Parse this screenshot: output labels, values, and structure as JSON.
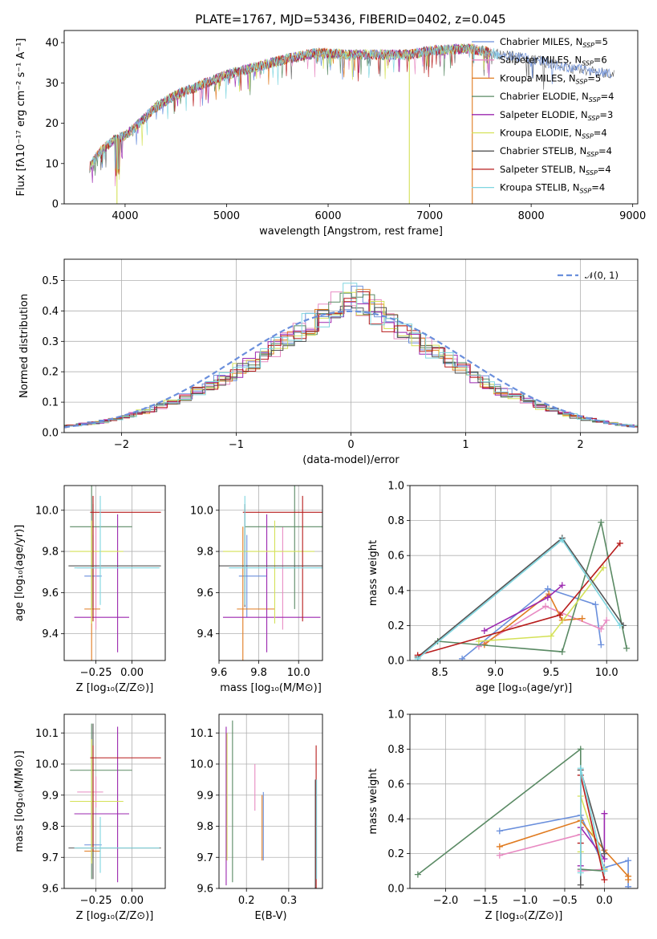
{
  "figure": {
    "title": "PLATE=1767, MJD=53436, FIBERID=0402, z=0.045"
  },
  "colors": [
    "#6a8fdc",
    "#e88ac2",
    "#e07b20",
    "#5a8a64",
    "#9b27af",
    "#d4e157",
    "#555555",
    "#b71c1c",
    "#7fd6e0"
  ],
  "chart_data": [
    {
      "id": "spectrum",
      "type": "line",
      "title": "PLATE=1767, MJD=53436, FIBERID=0402, z=0.045",
      "xlabel": "wavelength [Angstrom, rest frame]",
      "ylabel": "Flux [fλ10⁻¹⁷ erg cm⁻² s⁻¹ A⁻¹]",
      "xlim": [
        3400,
        9050
      ],
      "ylim": [
        0,
        43
      ],
      "xticks": [
        4000,
        5000,
        6000,
        7000,
        8000,
        9000
      ],
      "yticks": [
        0,
        10,
        20,
        30,
        40
      ],
      "legend_position": "top-right",
      "series": [
        {
          "name": "Chabrier MILES, Nₛₛₚ=5",
          "legend_main": "Chabrier MILES, N",
          "legend_sub": "SSP",
          "legend_tail": "=5"
        },
        {
          "name": "Salpeter MILES, Nₛₛₚ=6",
          "legend_main": "Salpeter MILES, N",
          "legend_sub": "SSP",
          "legend_tail": "=6"
        },
        {
          "name": "Kroupa MILES, Nₛₛₚ=5",
          "legend_main": "Kroupa MILES, N",
          "legend_sub": "SSP",
          "legend_tail": "=5"
        },
        {
          "name": "Chabrier ELODIE, Nₛₛₚ=4",
          "legend_main": "Chabrier ELODIE, N",
          "legend_sub": "SSP",
          "legend_tail": "=4"
        },
        {
          "name": "Salpeter ELODIE, Nₛₛₚ=3",
          "legend_main": "Salpeter ELODIE, N",
          "legend_sub": "SSP",
          "legend_tail": "=3"
        },
        {
          "name": "Kroupa ELODIE, Nₛₛₚ=4",
          "legend_main": "Kroupa ELODIE, N",
          "legend_sub": "SSP",
          "legend_tail": "=4"
        },
        {
          "name": "Chabrier STELIB, Nₛₛₚ=4",
          "legend_main": "Chabrier STELIB, N",
          "legend_sub": "SSP",
          "legend_tail": "=4"
        },
        {
          "name": "Salpeter STELIB, Nₛₛₚ=4",
          "legend_main": "Salpeter STELIB, N",
          "legend_sub": "SSP",
          "legend_tail": "=4"
        },
        {
          "name": "Kroupa STELIB, Nₛₛₚ=4",
          "legend_main": "Kroupa STELIB, N",
          "legend_sub": "SSP",
          "legend_tail": "=4"
        }
      ],
      "continuum": [
        [
          3650,
          9
        ],
        [
          3750,
          13
        ],
        [
          3900,
          16
        ],
        [
          4000,
          17
        ],
        [
          4100,
          19
        ],
        [
          4300,
          24
        ],
        [
          4500,
          27
        ],
        [
          4700,
          29
        ],
        [
          5000,
          32
        ],
        [
          5300,
          34
        ],
        [
          5600,
          36
        ],
        [
          5900,
          37.5
        ],
        [
          6200,
          37
        ],
        [
          6500,
          37
        ],
        [
          6800,
          37
        ],
        [
          7000,
          38
        ],
        [
          7400,
          38.5
        ],
        [
          7700,
          37
        ],
        [
          8000,
          36
        ],
        [
          8300,
          34
        ],
        [
          8600,
          33
        ],
        [
          8800,
          32
        ]
      ],
      "drop_lines": [
        [
          3920,
          "#d4e157"
        ],
        [
          6800,
          "#d4e157"
        ],
        [
          7420,
          "#e07b20"
        ]
      ]
    },
    {
      "id": "residuals",
      "type": "histogram",
      "xlabel": "(data-model)/error",
      "ylabel": "Normed distribution",
      "xlim": [
        -2.5,
        2.5
      ],
      "ylim": [
        0,
        0.57
      ],
      "xticks": [
        -2,
        -1,
        0,
        1,
        2
      ],
      "yticks": [
        0.0,
        0.1,
        0.2,
        0.3,
        0.4,
        0.5
      ],
      "legend": "𝒩(0, 1)",
      "legend_position": "top-right",
      "grid": true,
      "reference_curve": "normal(0,1)"
    },
    {
      "id": "z-age",
      "type": "errorbar",
      "xlabel": "Z [log₁₀(Z/Z⊙)]",
      "ylabel": "age  [log₁₀(age/yr)]",
      "xlim": [
        -0.47,
        0.23
      ],
      "ylim": [
        9.27,
        10.12
      ],
      "xticks": [
        -0.25,
        0.0
      ],
      "yticks": [
        9.4,
        9.6,
        9.8,
        10.0
      ],
      "grid": true,
      "points": [
        {
          "x": -0.27,
          "xerr": [
            0.06,
            0.06
          ],
          "y": 9.68,
          "yerr": [
            0.2,
            0.2
          ]
        },
        {
          "x": -0.25,
          "xerr": [
            0.13,
            0.05
          ],
          "y": 9.72,
          "yerr": [
            0.3,
            0.2
          ]
        },
        {
          "x": -0.28,
          "xerr": [
            0.05,
            0.06
          ],
          "y": 9.52,
          "yerr": [
            0.35,
            0.4
          ]
        },
        {
          "x": -0.28,
          "xerr": [
            0.15,
            0.28
          ],
          "y": 9.92,
          "yerr": [
            0.4,
            0.2
          ]
        },
        {
          "x": -0.1,
          "xerr": [
            0.3,
            0.08
          ],
          "y": 9.48,
          "yerr": [
            0.17,
            0.5
          ]
        },
        {
          "x": -0.28,
          "xerr": [
            0.15,
            0.22
          ],
          "y": 9.8,
          "yerr": [
            0.35,
            0.15
          ]
        },
        {
          "x": -0.27,
          "xerr": [
            0.17,
            0.47
          ],
          "y": 9.73,
          "yerr": [
            0.2,
            0.3
          ]
        },
        {
          "x": -0.27,
          "xerr": [
            0.02,
            0.47
          ],
          "y": 9.99,
          "yerr": [
            0.53,
            0.08
          ]
        },
        {
          "x": -0.22,
          "xerr": [
            0.18,
            0.41
          ],
          "y": 9.72,
          "yerr": [
            0.18,
            0.35
          ]
        }
      ]
    },
    {
      "id": "mass-age",
      "type": "errorbar",
      "xlabel": "mass [log₁₀(M/M⊙)]",
      "ylabel": "",
      "xlim": [
        9.6,
        10.12
      ],
      "ylim": [
        9.27,
        10.12
      ],
      "xticks": [
        9.6,
        9.8,
        10.0
      ],
      "yticks": [
        9.4,
        9.6,
        9.8,
        10.0
      ],
      "grid": true,
      "points": [
        {
          "x": 9.74,
          "xerr": [
            0.04,
            0.1
          ],
          "y": 9.68,
          "yerr": [
            0.2,
            0.2
          ]
        },
        {
          "x": 9.92,
          "xerr": [
            0.05,
            0.04
          ],
          "y": 9.72,
          "yerr": [
            0.3,
            0.2
          ]
        },
        {
          "x": 9.72,
          "xerr": [
            0.03,
            0.16
          ],
          "y": 9.52,
          "yerr": [
            0.35,
            0.4
          ]
        },
        {
          "x": 9.98,
          "xerr": [
            0.25,
            0.14
          ],
          "y": 9.92,
          "yerr": [
            0.4,
            0.2
          ]
        },
        {
          "x": 9.84,
          "xerr": [
            0.22,
            0.27
          ],
          "y": 9.48,
          "yerr": [
            0.17,
            0.5
          ]
        },
        {
          "x": 9.88,
          "xerr": [
            0.26,
            0.2
          ],
          "y": 9.8,
          "yerr": [
            0.35,
            0.15
          ]
        },
        {
          "x": 9.73,
          "xerr": [
            0.13,
            0.4
          ],
          "y": 9.73,
          "yerr": [
            0.2,
            0.3
          ]
        },
        {
          "x": 10.02,
          "xerr": [
            0.3,
            0.18
          ],
          "y": 9.99,
          "yerr": [
            0.53,
            0.08
          ]
        },
        {
          "x": 9.73,
          "xerr": [
            0.08,
            0.6
          ],
          "y": 9.72,
          "yerr": [
            0.18,
            0.35
          ]
        }
      ]
    },
    {
      "id": "age-weight",
      "type": "line",
      "xlabel": "age  [log₁₀(age/yr)]",
      "ylabel": "mass weight",
      "xlim": [
        8.23,
        10.28
      ],
      "ylim": [
        0.0,
        1.0
      ],
      "xticks": [
        8.5,
        9.0,
        9.5,
        10.0
      ],
      "yticks": [
        0.0,
        0.2,
        0.4,
        0.6,
        0.8,
        1.0
      ],
      "grid": true,
      "series": [
        {
          "x": [
            8.7,
            9.47,
            9.9,
            9.95
          ],
          "y": [
            0.01,
            0.41,
            0.32,
            0.09
          ]
        },
        {
          "x": [
            8.85,
            9.45,
            9.95,
            10.0
          ],
          "y": [
            0.08,
            0.31,
            0.18,
            0.23
          ]
        },
        {
          "x": [
            8.9,
            9.48,
            9.6,
            9.78
          ],
          "y": [
            0.09,
            0.38,
            0.23,
            0.24
          ]
        },
        {
          "x": [
            8.48,
            9.6,
            9.95,
            10.18
          ],
          "y": [
            0.11,
            0.05,
            0.79,
            0.07
          ]
        },
        {
          "x": [
            8.9,
            9.47,
            9.6
          ],
          "y": [
            0.17,
            0.36,
            0.43
          ]
        },
        {
          "x": [
            8.85,
            9.5,
            9.97
          ],
          "y": [
            0.11,
            0.14,
            0.53
          ]
        },
        {
          "x": [
            8.3,
            9.6,
            10.15
          ],
          "y": [
            0.02,
            0.7,
            0.2
          ]
        },
        {
          "x": [
            8.3,
            9.58,
            10.12
          ],
          "y": [
            0.03,
            0.26,
            0.67
          ]
        },
        {
          "x": [
            8.3,
            9.6,
            10.12
          ],
          "y": [
            0.01,
            0.69,
            0.2
          ]
        }
      ]
    },
    {
      "id": "z-mass",
      "type": "errorbar",
      "xlabel": "Z [log₁₀(Z/Z⊙)]",
      "ylabel": "mass [log₁₀(M/M⊙)]",
      "xlim": [
        -0.47,
        0.23
      ],
      "ylim": [
        9.6,
        10.16
      ],
      "xticks": [
        -0.25,
        0.0
      ],
      "yticks": [
        9.6,
        9.7,
        9.8,
        9.9,
        10.0,
        10.1
      ],
      "grid": true,
      "points": [
        {
          "x": -0.27,
          "xerr": [
            0.06,
            0.06
          ],
          "y": 9.74,
          "yerr": [
            0.04,
            0.1
          ]
        },
        {
          "x": -0.25,
          "xerr": [
            0.13,
            0.05
          ],
          "y": 9.91,
          "yerr": [
            0.05,
            0.05
          ]
        },
        {
          "x": -0.28,
          "xerr": [
            0.05,
            0.06
          ],
          "y": 9.72,
          "yerr": [
            0.03,
            0.16
          ]
        },
        {
          "x": -0.28,
          "xerr": [
            0.15,
            0.28
          ],
          "y": 9.98,
          "yerr": [
            0.35,
            0.15
          ]
        },
        {
          "x": -0.1,
          "xerr": [
            0.3,
            0.08
          ],
          "y": 9.84,
          "yerr": [
            0.22,
            0.28
          ]
        },
        {
          "x": -0.28,
          "xerr": [
            0.15,
            0.22
          ],
          "y": 9.88,
          "yerr": [
            0.2,
            0.2
          ]
        },
        {
          "x": -0.27,
          "xerr": [
            0.17,
            0.47
          ],
          "y": 9.73,
          "yerr": [
            0.1,
            0.4
          ]
        },
        {
          "x": -0.27,
          "xerr": [
            0.02,
            0.47
          ],
          "y": 10.02,
          "yerr": [
            0.3,
            0.04
          ]
        },
        {
          "x": -0.22,
          "xerr": [
            0.18,
            0.41
          ],
          "y": 9.73,
          "yerr": [
            0.08,
            0.1
          ]
        }
      ]
    },
    {
      "id": "ebv-mass",
      "type": "errorbar",
      "xlabel": "E(B-V)",
      "ylabel": "",
      "xlim": [
        0.135,
        0.38
      ],
      "ylim": [
        9.6,
        10.16
      ],
      "xticks": [
        0.2,
        0.3
      ],
      "yticks": [
        9.6,
        9.7,
        9.8,
        9.9,
        10.0,
        10.1
      ],
      "grid": true,
      "points": [
        {
          "x": 0.24,
          "y": 9.8,
          "yerr": [
            0.11,
            0.11
          ]
        },
        {
          "x": 0.22,
          "y": 9.92,
          "yerr": [
            0.07,
            0.08
          ]
        },
        {
          "x": 0.237,
          "y": 9.8,
          "yerr": [
            0.11,
            0.1
          ]
        },
        {
          "x": 0.167,
          "y": 9.92,
          "yerr": [
            0.3,
            0.22
          ]
        },
        {
          "x": 0.152,
          "y": 9.85,
          "yerr": [
            0.24,
            0.27
          ]
        },
        {
          "x": 0.154,
          "y": 9.9,
          "yerr": [
            0.21,
            0.2
          ]
        },
        {
          "x": 0.363,
          "y": 9.75,
          "yerr": [
            0.15,
            0.2
          ]
        },
        {
          "x": 0.365,
          "y": 9.95,
          "yerr": [
            0.35,
            0.11
          ]
        },
        {
          "x": 0.366,
          "y": 9.78,
          "yerr": [
            0.15,
            0.17
          ]
        }
      ]
    },
    {
      "id": "z-weight",
      "type": "line",
      "xlabel": "Z [log₁₀(Z/Z⊙)]",
      "ylabel": "mass weight",
      "xlim": [
        -2.45,
        0.42
      ],
      "ylim": [
        0.0,
        1.0
      ],
      "xticks": [
        -2.0,
        -1.5,
        -1.0,
        -0.5,
        0.0
      ],
      "yticks": [
        0.0,
        0.2,
        0.4,
        0.6,
        0.8,
        1.0
      ],
      "grid": true,
      "series": [
        {
          "x": [
            -1.32,
            -0.3,
            0.0,
            0.3,
            0.3
          ],
          "y": [
            0.33,
            0.42,
            0.12,
            0.16,
            0.01
          ]
        },
        {
          "x": [
            -1.32,
            -0.3,
            -0.3,
            0.0
          ],
          "y": [
            0.19,
            0.31,
            0.1,
            0.11
          ]
        },
        {
          "x": [
            -1.32,
            -0.3,
            0.0,
            0.3,
            0.3
          ],
          "y": [
            0.24,
            0.39,
            0.22,
            0.07,
            0.05
          ]
        },
        {
          "x": [
            -2.35,
            -0.3,
            -0.3,
            0.0
          ],
          "y": [
            0.08,
            0.8,
            0.11,
            0.1
          ]
        },
        {
          "x": [
            -0.3,
            -0.3,
            0.0,
            0.0
          ],
          "y": [
            0.13,
            0.35,
            0.17,
            0.43
          ]
        },
        {
          "x": [
            -0.3,
            -0.3,
            0.0
          ],
          "y": [
            0.21,
            0.53,
            0.11
          ]
        },
        {
          "x": [
            -0.3,
            -0.3,
            0.0
          ],
          "y": [
            0.02,
            0.68,
            0.2
          ]
        },
        {
          "x": [
            -0.3,
            -0.3,
            0.0
          ],
          "y": [
            0.26,
            0.65,
            0.05
          ]
        },
        {
          "x": [
            -0.3,
            -0.3,
            0.0
          ],
          "y": [
            0.09,
            0.69,
            0.1
          ]
        }
      ]
    }
  ]
}
